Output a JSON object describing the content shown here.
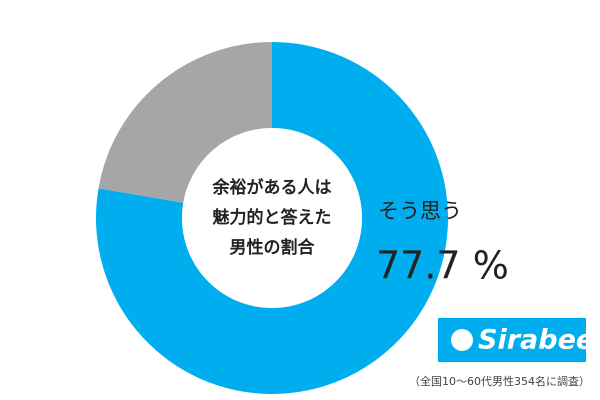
{
  "chart_data": {
    "type": "donut",
    "title_lines": [
      "余裕がある人は",
      "魅力的と答えた",
      "男性の割合"
    ],
    "categories": [
      "そう思う",
      null
    ],
    "values": [
      77.7,
      22.3
    ],
    "value_labels": [
      "77.7 %",
      null
    ],
    "colors": [
      "#00aeef",
      "#a6a6a6"
    ]
  },
  "logo": "Sirabee",
  "footnote": "（全国10～60代男性354名に調査）"
}
